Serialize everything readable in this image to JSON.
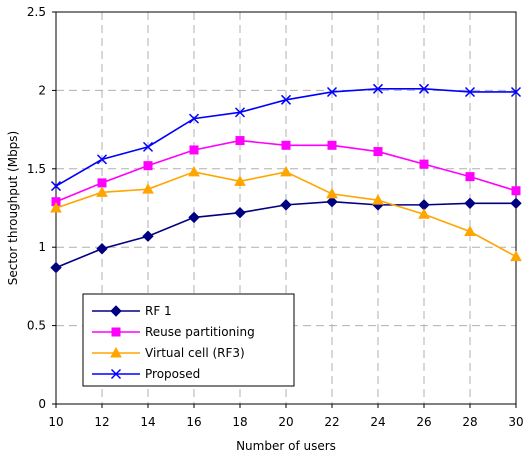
{
  "chart_data": {
    "type": "line",
    "title": "",
    "xlabel": "Number of users",
    "ylabel": "Sector throughput (Mbps)",
    "x": [
      10,
      12,
      14,
      16,
      18,
      20,
      22,
      24,
      26,
      28,
      30
    ],
    "xlim": [
      10,
      30
    ],
    "ylim": [
      0,
      2.5
    ],
    "x_ticks": [
      "10",
      "12",
      "14",
      "16",
      "18",
      "20",
      "22",
      "24",
      "26",
      "28",
      "30"
    ],
    "y_ticks": [
      "0",
      "0.5",
      "1",
      "1.5",
      "2",
      "2.5"
    ],
    "grid": "dashed",
    "legend_position": "bottom-left",
    "series": [
      {
        "name": "RF 1",
        "color": "#000080",
        "marker": "diamond",
        "values": [
          0.87,
          0.99,
          1.07,
          1.19,
          1.22,
          1.27,
          1.29,
          1.27,
          1.27,
          1.28,
          1.28
        ]
      },
      {
        "name": "Reuse partitioning",
        "color": "#ff00ff",
        "marker": "square",
        "values": [
          1.29,
          1.41,
          1.52,
          1.62,
          1.68,
          1.65,
          1.65,
          1.61,
          1.53,
          1.45,
          1.36
        ]
      },
      {
        "name": "Virtual cell (RF3)",
        "color": "#ffa500",
        "marker": "triangle",
        "values": [
          1.25,
          1.35,
          1.37,
          1.48,
          1.42,
          1.48,
          1.34,
          1.3,
          1.21,
          1.1,
          0.94
        ]
      },
      {
        "name": "Proposed",
        "color": "#0000ff",
        "marker": "x",
        "values": [
          1.39,
          1.56,
          1.64,
          1.82,
          1.86,
          1.94,
          1.99,
          2.01,
          2.01,
          1.99,
          1.99
        ]
      }
    ]
  }
}
